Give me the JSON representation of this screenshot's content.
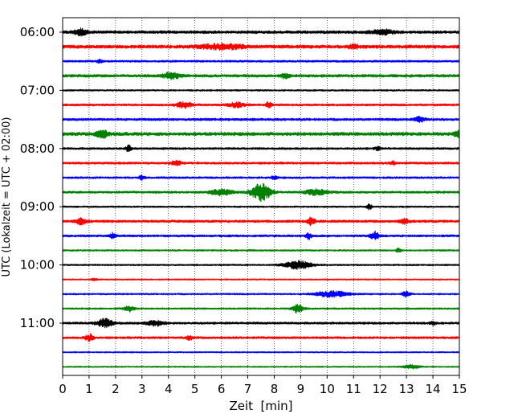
{
  "chart_data": {
    "type": "line",
    "title": "",
    "xlabel": "Zeit  [min]",
    "ylabel": "UTC (Lokalzeit = UTC + 02:00)",
    "xlim": [
      0,
      15
    ],
    "x_ticks": [
      "0",
      "1",
      "2",
      "3",
      "4",
      "5",
      "6",
      "7",
      "8",
      "9",
      "10",
      "11",
      "12",
      "13",
      "14",
      "15"
    ],
    "y_ticks": [
      "06:00",
      "07:00",
      "08:00",
      "09:00",
      "10:00",
      "11:00"
    ],
    "y_tick_rows": [
      0,
      4,
      8,
      12,
      16,
      20
    ],
    "grid": "vertical dotted",
    "trace_interval_min": 15,
    "colors": [
      "#000000",
      "#ff0000",
      "#0000ff",
      "#008000"
    ],
    "traces": [
      {
        "start": "06:00",
        "color": "#000000",
        "amp": 0.25,
        "events": [
          {
            "t": 0.7,
            "a": 0.55,
            "w": 0.25
          },
          {
            "t": 12.1,
            "a": 0.45,
            "w": 0.4
          }
        ]
      },
      {
        "start": "06:15",
        "color": "#ff0000",
        "amp": 0.3,
        "events": [
          {
            "t": 6.0,
            "a": 0.4,
            "w": 0.8
          },
          {
            "t": 11.0,
            "a": 0.3,
            "w": 0.2
          }
        ]
      },
      {
        "start": "06:30",
        "color": "#0000ff",
        "amp": 0.18,
        "events": [
          {
            "t": 1.4,
            "a": 0.35,
            "w": 0.1
          }
        ]
      },
      {
        "start": "06:45",
        "color": "#008000",
        "amp": 0.25,
        "events": [
          {
            "t": 4.1,
            "a": 0.55,
            "w": 0.3
          },
          {
            "t": 8.4,
            "a": 0.4,
            "w": 0.15
          }
        ]
      },
      {
        "start": "07:00",
        "color": "#000000",
        "amp": 0.15,
        "events": []
      },
      {
        "start": "07:15",
        "color": "#ff0000",
        "amp": 0.2,
        "events": [
          {
            "t": 4.6,
            "a": 0.45,
            "w": 0.3
          },
          {
            "t": 6.6,
            "a": 0.4,
            "w": 0.3
          },
          {
            "t": 7.8,
            "a": 0.55,
            "w": 0.1
          }
        ]
      },
      {
        "start": "07:30",
        "color": "#0000ff",
        "amp": 0.22,
        "events": [
          {
            "t": 13.5,
            "a": 0.4,
            "w": 0.2
          }
        ]
      },
      {
        "start": "07:45",
        "color": "#008000",
        "amp": 0.3,
        "events": [
          {
            "t": 1.5,
            "a": 0.7,
            "w": 0.2
          },
          {
            "t": 14.9,
            "a": 0.7,
            "w": 0.1
          }
        ]
      },
      {
        "start": "08:00",
        "color": "#000000",
        "amp": 0.18,
        "events": [
          {
            "t": 2.5,
            "a": 0.6,
            "w": 0.1
          },
          {
            "t": 11.9,
            "a": 0.35,
            "w": 0.1
          }
        ]
      },
      {
        "start": "08:15",
        "color": "#ff0000",
        "amp": 0.2,
        "events": [
          {
            "t": 4.3,
            "a": 0.35,
            "w": 0.2
          },
          {
            "t": 12.5,
            "a": 0.3,
            "w": 0.1
          }
        ]
      },
      {
        "start": "08:30",
        "color": "#0000ff",
        "amp": 0.18,
        "events": [
          {
            "t": 3.0,
            "a": 0.45,
            "w": 0.1
          },
          {
            "t": 8.0,
            "a": 0.3,
            "w": 0.1
          }
        ]
      },
      {
        "start": "08:45",
        "color": "#008000",
        "amp": 0.2,
        "events": [
          {
            "t": 7.5,
            "a": 1.5,
            "w": 0.35
          },
          {
            "t": 6.0,
            "a": 0.5,
            "w": 0.4
          },
          {
            "t": 9.6,
            "a": 0.5,
            "w": 0.4
          }
        ]
      },
      {
        "start": "09:00",
        "color": "#000000",
        "amp": 0.15,
        "events": [
          {
            "t": 11.6,
            "a": 0.5,
            "w": 0.1
          }
        ]
      },
      {
        "start": "09:15",
        "color": "#ff0000",
        "amp": 0.22,
        "events": [
          {
            "t": 0.7,
            "a": 0.5,
            "w": 0.2
          },
          {
            "t": 9.4,
            "a": 0.6,
            "w": 0.15
          },
          {
            "t": 12.9,
            "a": 0.5,
            "w": 0.15
          }
        ]
      },
      {
        "start": "09:30",
        "color": "#0000ff",
        "amp": 0.2,
        "events": [
          {
            "t": 1.9,
            "a": 0.5,
            "w": 0.1
          },
          {
            "t": 9.3,
            "a": 0.55,
            "w": 0.1
          },
          {
            "t": 11.8,
            "a": 0.7,
            "w": 0.15
          }
        ]
      },
      {
        "start": "09:45",
        "color": "#008000",
        "amp": 0.15,
        "events": [
          {
            "t": 12.7,
            "a": 0.3,
            "w": 0.1
          }
        ]
      },
      {
        "start": "10:00",
        "color": "#000000",
        "amp": 0.15,
        "events": [
          {
            "t": 8.9,
            "a": 0.7,
            "w": 0.5
          }
        ]
      },
      {
        "start": "10:15",
        "color": "#ff0000",
        "amp": 0.12,
        "events": [
          {
            "t": 1.2,
            "a": 0.25,
            "w": 0.1
          }
        ]
      },
      {
        "start": "10:30",
        "color": "#0000ff",
        "amp": 0.15,
        "events": [
          {
            "t": 10.2,
            "a": 0.5,
            "w": 0.6
          },
          {
            "t": 13.0,
            "a": 0.5,
            "w": 0.15
          }
        ]
      },
      {
        "start": "10:45",
        "color": "#008000",
        "amp": 0.15,
        "events": [
          {
            "t": 2.5,
            "a": 0.5,
            "w": 0.2
          },
          {
            "t": 8.9,
            "a": 0.8,
            "w": 0.2
          }
        ]
      },
      {
        "start": "11:00",
        "color": "#000000",
        "amp": 0.2,
        "events": [
          {
            "t": 1.6,
            "a": 0.7,
            "w": 0.3
          },
          {
            "t": 3.5,
            "a": 0.45,
            "w": 0.3
          },
          {
            "t": 14.0,
            "a": 0.35,
            "w": 0.1
          }
        ]
      },
      {
        "start": "11:15",
        "color": "#ff0000",
        "amp": 0.2,
        "events": [
          {
            "t": 1.0,
            "a": 0.6,
            "w": 0.15
          },
          {
            "t": 4.8,
            "a": 0.45,
            "w": 0.1
          }
        ]
      },
      {
        "start": "11:30",
        "color": "#0000ff",
        "amp": 0.12,
        "events": []
      },
      {
        "start": "11:45",
        "color": "#008000",
        "amp": 0.12,
        "events": [
          {
            "t": 13.2,
            "a": 0.35,
            "w": 0.3
          }
        ]
      }
    ]
  }
}
